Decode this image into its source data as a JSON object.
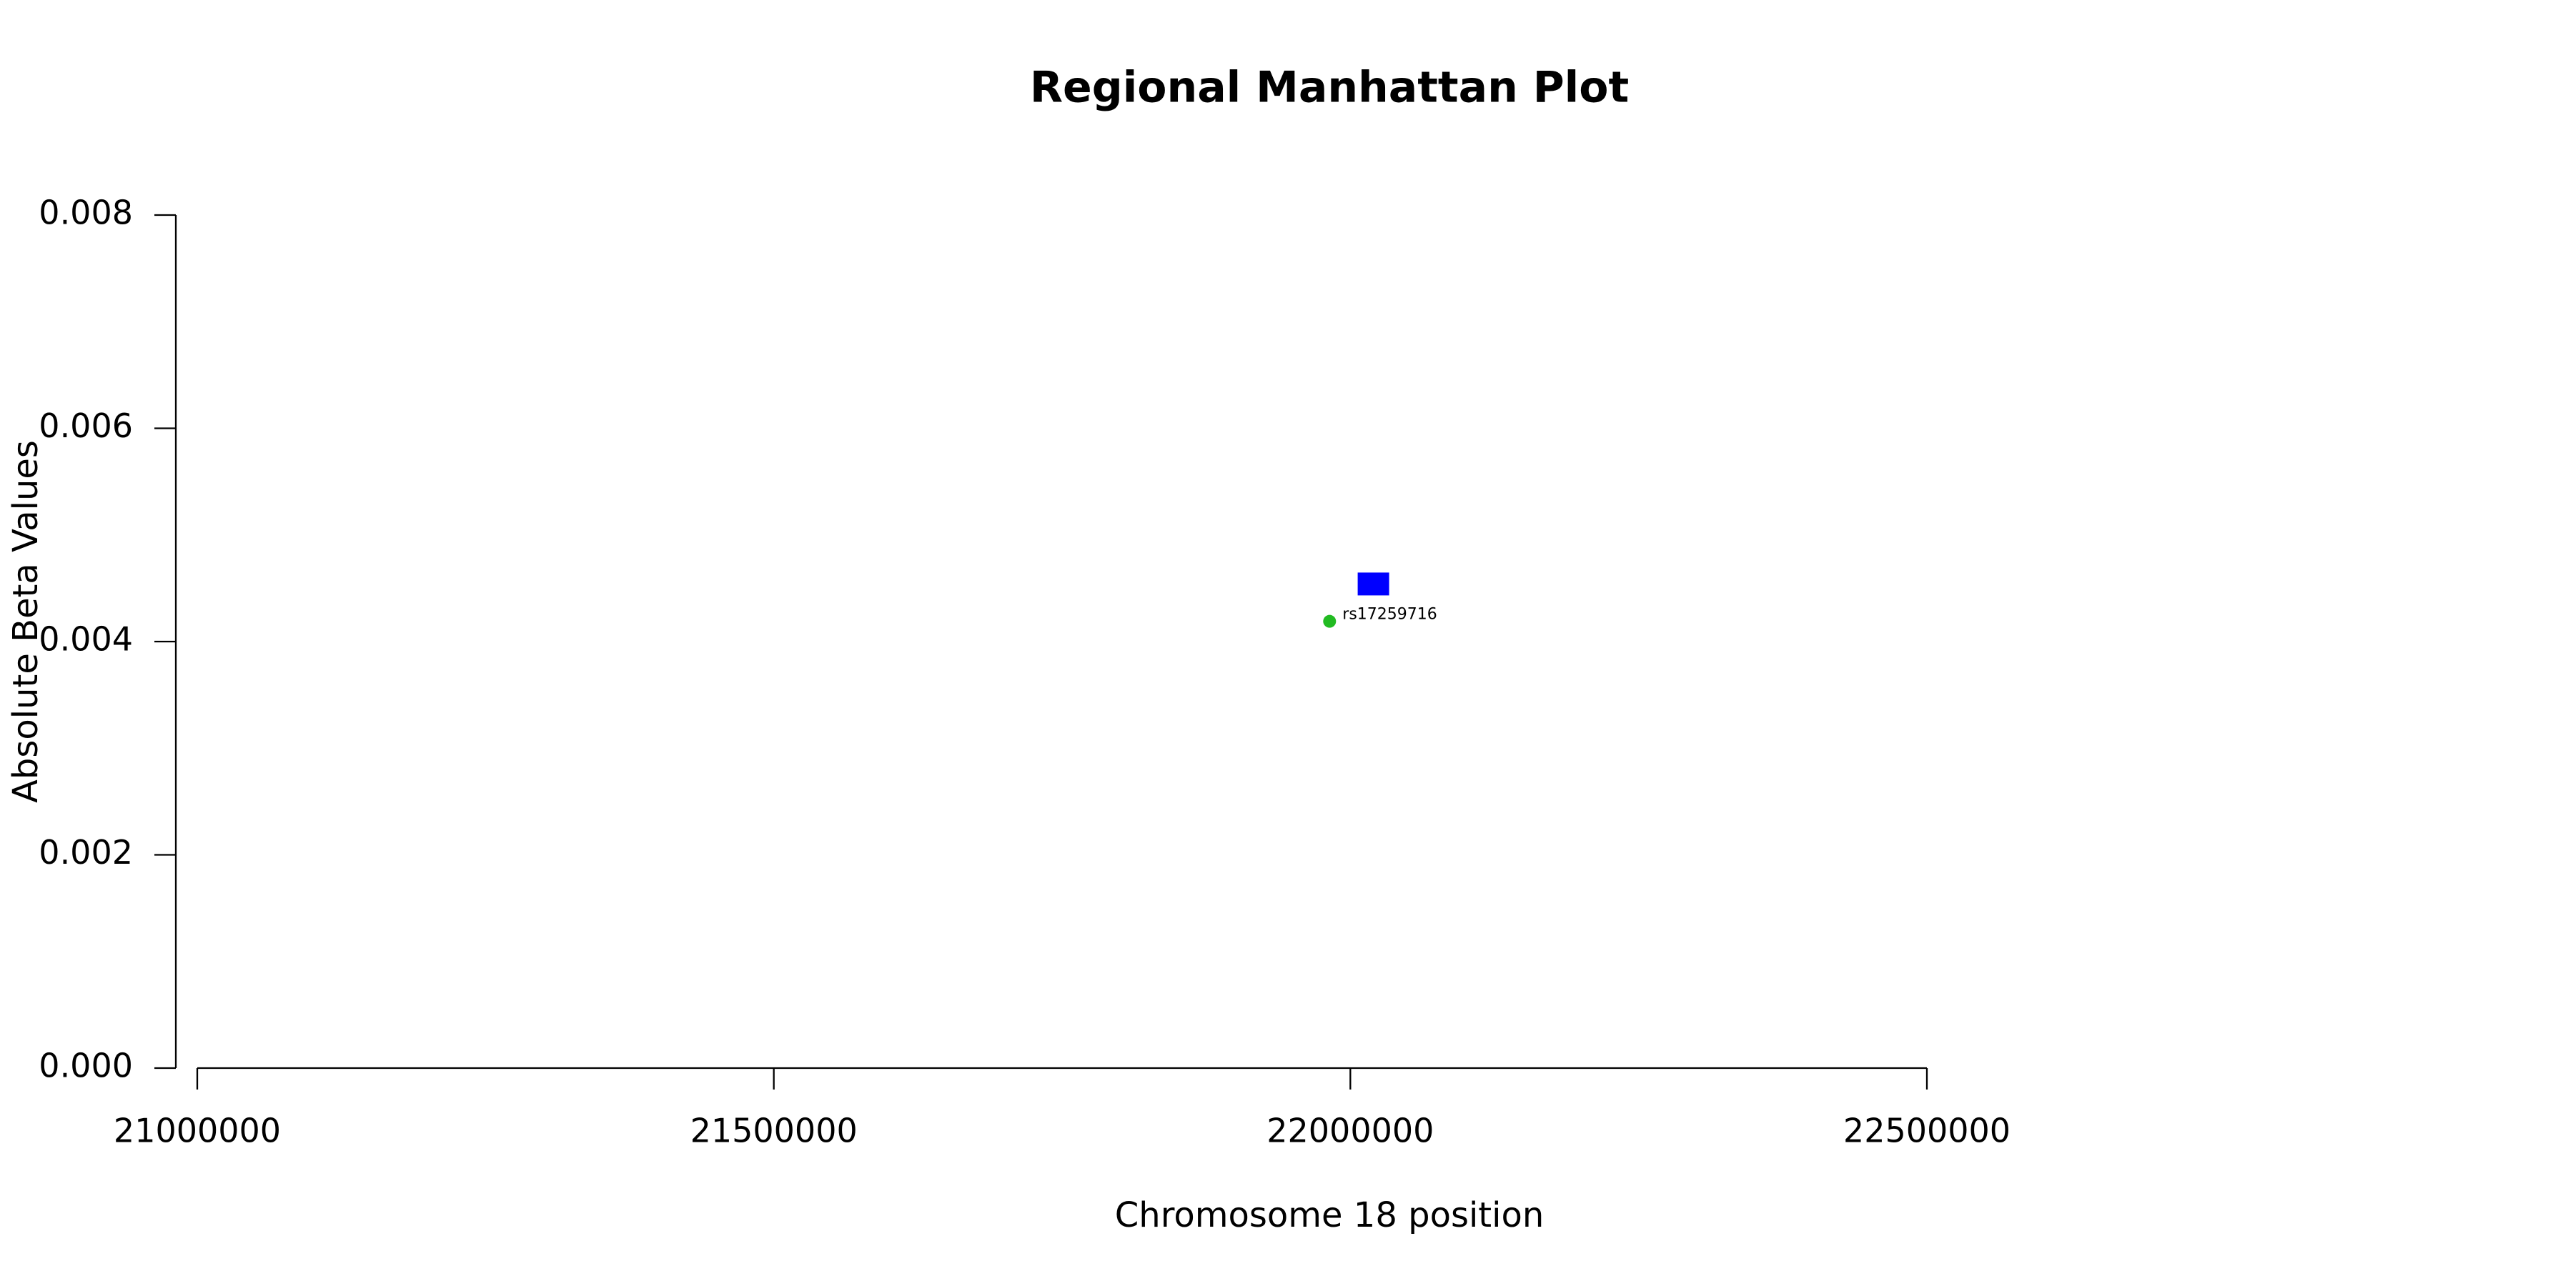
{
  "chart_data": {
    "type": "scatter",
    "title": "Regional Manhattan Plot",
    "x_label": "Chromosome 18 position",
    "y_label": "Absolute Beta Values",
    "series": [
      {
        "color": "#22bb22",
        "marker": "circle",
        "x": [
          21982000
        ],
        "values": [
          0.00419
        ],
        "point_labels": [
          "rs17259716"
        ]
      },
      {
        "color": "#0000ff",
        "marker": "square",
        "x": [
          22020000
        ],
        "values": [
          0.00454
        ]
      }
    ],
    "xlim": [
      21000000,
      22500000
    ],
    "xticks": [
      21000000,
      21500000,
      22000000,
      22500000
    ],
    "ylim": [
      0,
      0.008
    ],
    "yticks": [
      {
        "value": 0,
        "label": "0.000"
      },
      0.002,
      0.004,
      0.006,
      0.008
    ]
  }
}
